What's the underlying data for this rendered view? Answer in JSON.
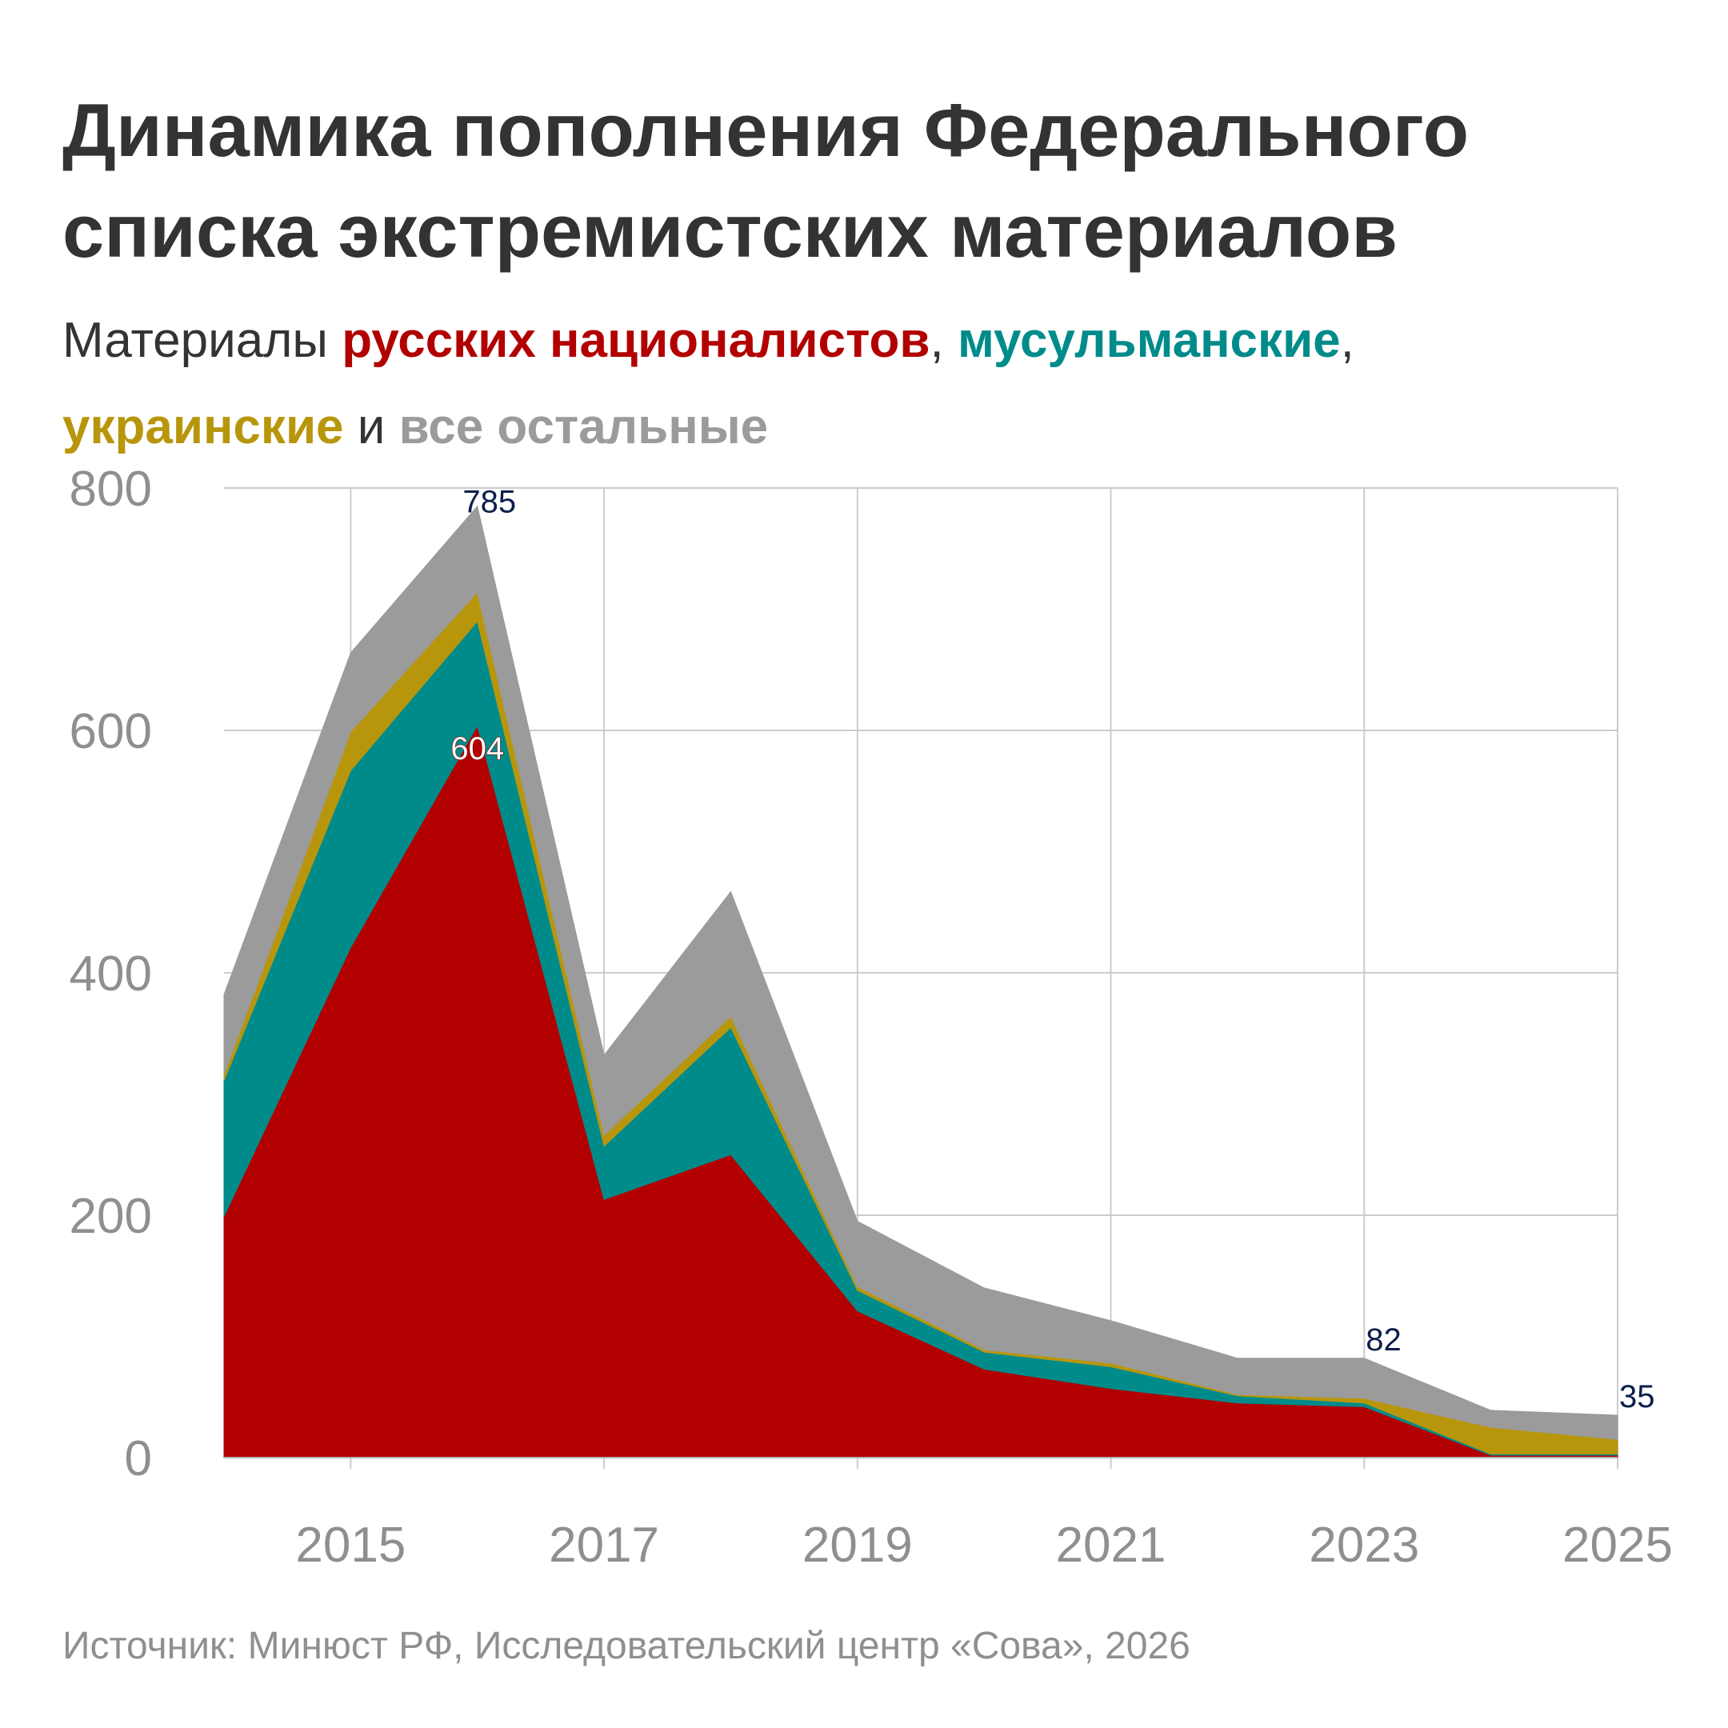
{
  "title_line1": "Динамика пополнения Федерального",
  "title_line2": "списка экстремистских материалов",
  "subtitle": {
    "prefix": "Материалы ",
    "russian": "русских националистов",
    "sep1": ", ",
    "muslim": "мусульманские",
    "sep2": ",",
    "ukrainian": "украинские",
    "and": " и ",
    "other": "все остальные"
  },
  "source": "Источник: Минюст РФ, Исследовательский центр «Сова», 2026",
  "chart_data": {
    "type": "area",
    "stacked": true,
    "x": [
      2014,
      2015,
      2016,
      2017,
      2018,
      2019,
      2020,
      2021,
      2022,
      2023,
      2024,
      2025
    ],
    "x_ticks": [
      "2015",
      "2017",
      "2019",
      "2021",
      "2023",
      "2025"
    ],
    "y_ticks": [
      "0",
      "200",
      "400",
      "600",
      "800"
    ],
    "ylim": [
      0,
      800
    ],
    "xlim": [
      2014,
      2025
    ],
    "grid": true,
    "series": [
      {
        "name": "русских националистов",
        "color": "#b20000",
        "values": [
          199,
          421,
          604,
          213,
          250,
          121,
          73,
          57,
          45,
          42,
          2,
          2
        ]
      },
      {
        "name": "мусульманские",
        "color": "#008b8b",
        "values": [
          112,
          146,
          86,
          44,
          105,
          17,
          14,
          18,
          6,
          3,
          1,
          1
        ]
      },
      {
        "name": "украинские",
        "color": "#b8960c",
        "values": [
          5,
          32,
          24,
          9,
          9,
          3,
          2,
          3,
          1,
          4,
          22,
          12
        ]
      },
      {
        "name": "все остальные",
        "color": "#9b9b9b",
        "values": [
          66,
          65,
          71,
          66,
          103,
          54,
          51,
          35,
          30,
          33,
          14,
          20
        ]
      }
    ],
    "labels": [
      {
        "x": 2016,
        "y": 785,
        "text": "785",
        "kind": "total"
      },
      {
        "x": 2016,
        "y": 604,
        "text": "604",
        "kind": "series"
      },
      {
        "x": 2023,
        "y": 82,
        "text": "82",
        "kind": "total"
      },
      {
        "x": 2025,
        "y": 35,
        "text": "35",
        "kind": "total"
      }
    ]
  },
  "colors": {
    "title": "#333333",
    "russian": "#b20000",
    "muslim": "#008b8b",
    "ukrainian": "#b8960c",
    "other": "#9b9b9b",
    "axis_text": "#8f8f8f",
    "gridline": "#cccccc"
  }
}
